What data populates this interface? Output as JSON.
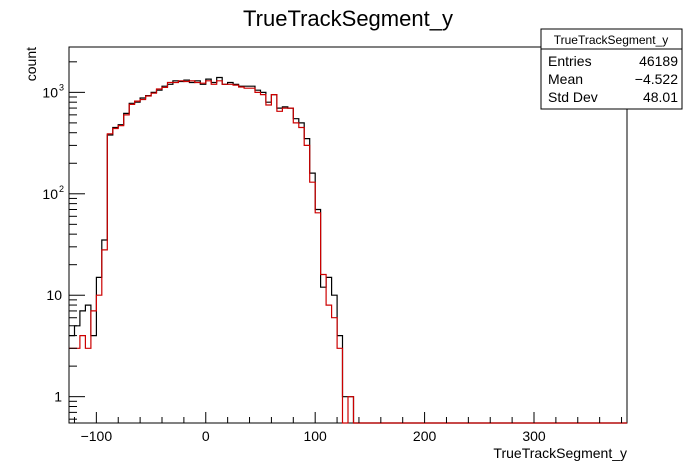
{
  "chart_data": {
    "type": "histogram",
    "title": "TrueTrackSegment_y",
    "xlabel": "TrueTrackSegment_y",
    "ylabel": "count",
    "xlim": [
      -125,
      385
    ],
    "ylim": [
      0.55,
      2800
    ],
    "yscale": "log",
    "grid": false,
    "x_ticks": [
      -100,
      0,
      100,
      200,
      300
    ],
    "y_ticks": [
      {
        "value": 1,
        "label": "1"
      },
      {
        "value": 10,
        "label": "10"
      },
      {
        "value": 100,
        "label": "10",
        "exp": "2"
      },
      {
        "value": 1000,
        "label": "10",
        "exp": "3"
      }
    ],
    "bin_width": 5,
    "bin_start": -125,
    "series": [
      {
        "color": "#000000",
        "values": [
          4,
          5,
          7,
          8,
          4,
          15,
          35,
          380,
          450,
          480,
          620,
          780,
          800,
          880,
          930,
          1000,
          1050,
          1150,
          1200,
          1300,
          1280,
          1320,
          1250,
          1300,
          1200,
          1350,
          1250,
          1400,
          1200,
          1250,
          1200,
          1150,
          1150,
          1150,
          1050,
          1000,
          800,
          950,
          700,
          720,
          700,
          550,
          500,
          350,
          160,
          70,
          12,
          15,
          10,
          4,
          1,
          1,
          0.5,
          0.5,
          0.5,
          0.5,
          0.5,
          0.5,
          0.5,
          0.5,
          0.5,
          0.5,
          0.5,
          0.5,
          0.5,
          0.5,
          0.5,
          0.5,
          0.5,
          0.5,
          0.5,
          0.5,
          0.5,
          0.5,
          0.5,
          0.5,
          0.5,
          0.5,
          0.5,
          0.5,
          0.5,
          0.5,
          0.5,
          0.5,
          0.5,
          0.5,
          0.5,
          0.5,
          0.5,
          0.5,
          0.5,
          0.5,
          0.5,
          0.5,
          0.5,
          0.5,
          0.5,
          0.5,
          0.5,
          0.5,
          0.5,
          0.5
        ]
      },
      {
        "color": "#cc0000",
        "values": [
          3,
          3,
          4,
          3,
          7,
          10,
          28,
          390,
          440,
          470,
          600,
          760,
          820,
          850,
          920,
          980,
          1080,
          1120,
          1250,
          1250,
          1300,
          1280,
          1300,
          1250,
          1230,
          1300,
          1200,
          1300,
          1200,
          1200,
          1180,
          1130,
          1100,
          1100,
          1000,
          950,
          750,
          950,
          650,
          700,
          700,
          500,
          450,
          300,
          130,
          65,
          16,
          8,
          6,
          3,
          0.5,
          1,
          0.5,
          0.5,
          0.5,
          0.5,
          0.5,
          0.5,
          0.5,
          0.5,
          0.5,
          0.5,
          0.5,
          0.5,
          0.5,
          0.5,
          0.5,
          0.5,
          0.5,
          0.5,
          0.5,
          0.5,
          0.5,
          0.5,
          0.5,
          0.5,
          0.5,
          0.5,
          0.5,
          0.5,
          0.5,
          0.5,
          0.5,
          0.5,
          0.5,
          0.5,
          0.5,
          0.5,
          0.5,
          0.5,
          0.5,
          0.5,
          0.5,
          0.5,
          0.5,
          0.5,
          0.5,
          0.5,
          0.5,
          0.5,
          0.5,
          0.5
        ]
      }
    ],
    "stats_box": {
      "title": "TrueTrackSegment_y",
      "rows": [
        {
          "label": "Entries",
          "value": "46189"
        },
        {
          "label": "Mean",
          "value": "−4.522"
        },
        {
          "label": "Std Dev",
          "value": "48.01"
        }
      ]
    }
  }
}
